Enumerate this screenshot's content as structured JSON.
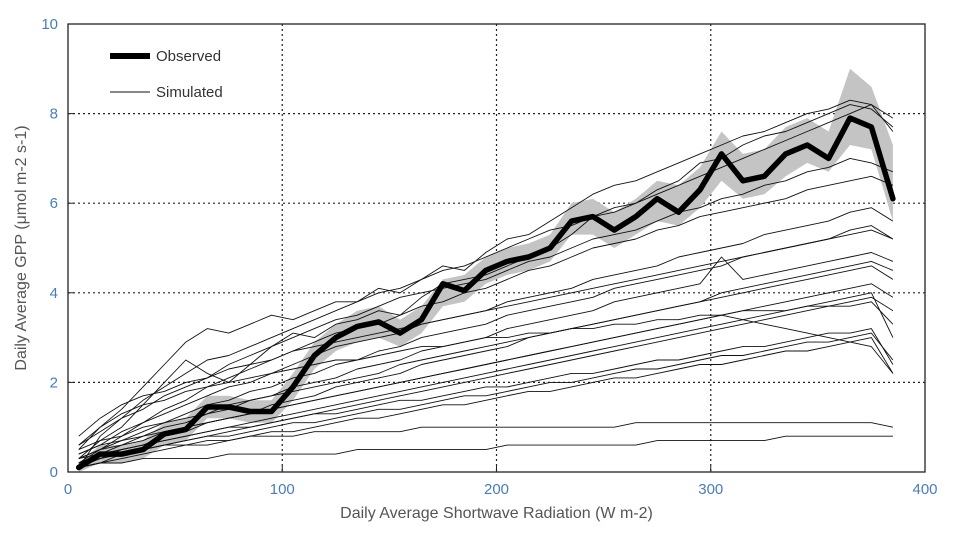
{
  "chart_data": {
    "type": "line",
    "xlabel": "Daily Average Shortwave Radiation (W m-2)",
    "ylabel": "Daily Average GPP (μmol m-2 s-1)",
    "xlim": [
      0,
      400
    ],
    "ylim": [
      0,
      10
    ],
    "xticks": [
      "0",
      "100",
      "200",
      "300",
      "400"
    ],
    "yticks": [
      "0",
      "2",
      "4",
      "6",
      "8",
      "10"
    ],
    "grid": true,
    "legend_position": "top-left",
    "legend": [
      "Observed",
      "Simulated"
    ],
    "colors": {
      "observed": "#000000",
      "simulated": "#111111",
      "band": "#c4c4c4",
      "tick": "#4a7db5"
    },
    "x": [
      5,
      15,
      25,
      35,
      45,
      55,
      65,
      75,
      85,
      95,
      105,
      115,
      125,
      135,
      145,
      155,
      165,
      175,
      185,
      195,
      205,
      215,
      225,
      235,
      245,
      255,
      265,
      275,
      285,
      295,
      305,
      315,
      325,
      335,
      345,
      355,
      365,
      375,
      385
    ],
    "observed_band": {
      "lower": [
        0,
        0.2,
        0.2,
        0.3,
        0.6,
        0.7,
        1.2,
        1.2,
        1.1,
        1.1,
        1.6,
        2.3,
        2.7,
        2.9,
        3.0,
        2.8,
        3.1,
        3.7,
        3.8,
        4.2,
        4.4,
        4.5,
        4.7,
        5.3,
        5.3,
        5.0,
        5.3,
        5.6,
        5.5,
        5.9,
        6.5,
        6.1,
        6.2,
        6.6,
        6.9,
        6.7,
        7.3,
        7.2,
        5.6
      ],
      "upper": [
        0.2,
        0.6,
        0.6,
        0.7,
        1.1,
        1.2,
        1.7,
        1.7,
        1.6,
        1.6,
        2.2,
        2.9,
        3.3,
        3.6,
        3.7,
        3.4,
        3.7,
        4.3,
        4.4,
        4.8,
        5.0,
        5.1,
        5.3,
        6.0,
        6.1,
        5.8,
        6.1,
        6.5,
        6.4,
        6.8,
        7.6,
        7.1,
        7.2,
        7.7,
        7.9,
        7.6,
        9.0,
        8.6,
        7.3
      ]
    },
    "series": [
      {
        "name": "Observed",
        "values": [
          0.1,
          0.4,
          0.4,
          0.5,
          0.85,
          0.95,
          1.45,
          1.45,
          1.35,
          1.35,
          1.9,
          2.6,
          3.0,
          3.25,
          3.35,
          3.1,
          3.4,
          4.2,
          4.05,
          4.5,
          4.7,
          4.8,
          5.0,
          5.6,
          5.7,
          5.4,
          5.7,
          6.1,
          5.8,
          6.3,
          7.1,
          6.5,
          6.6,
          7.1,
          7.3,
          7.0,
          7.9,
          7.7,
          6.1
        ]
      },
      {
        "values": [
          0.1,
          0.8,
          1.2,
          1.6,
          1.9,
          2.2,
          2.5,
          2.6,
          2.8,
          3.0,
          3.2,
          3.4,
          3.6,
          3.8,
          4.0,
          4.1,
          4.3,
          4.5,
          4.6,
          4.8,
          5.0,
          5.2,
          5.4,
          5.5,
          5.7,
          5.9,
          6.0,
          6.2,
          6.4,
          6.6,
          6.8,
          7.0,
          7.2,
          7.4,
          7.6,
          7.8,
          8.0,
          8.2,
          7.6
        ]
      },
      {
        "values": [
          0.5,
          1.0,
          1.4,
          1.9,
          2.4,
          2.9,
          3.2,
          3.1,
          3.3,
          3.5,
          3.4,
          3.6,
          3.8,
          3.8,
          4.1,
          4.0,
          4.3,
          4.6,
          4.5,
          4.9,
          5.2,
          5.3,
          5.6,
          5.9,
          6.2,
          6.4,
          6.5,
          6.7,
          6.9,
          7.1,
          7.3,
          7.5,
          7.6,
          7.8,
          8.0,
          8.1,
          8.3,
          8.2,
          7.9
        ]
      },
      {
        "values": [
          0.3,
          0.7,
          1.0,
          1.5,
          2.0,
          2.5,
          2.2,
          2.0,
          2.4,
          2.8,
          3.1,
          3.0,
          3.3,
          3.4,
          3.6,
          3.5,
          3.9,
          4.2,
          4.3,
          4.4,
          4.6,
          4.8,
          5.0,
          5.3,
          5.7,
          5.8,
          6.0,
          6.3,
          6.5,
          6.9,
          7.0,
          7.3,
          7.5,
          7.6,
          7.8,
          8.0,
          8.2,
          8.1,
          7.7
        ]
      },
      {
        "values": [
          0.6,
          0.9,
          1.2,
          1.4,
          1.7,
          1.9,
          2.1,
          2.4,
          2.6,
          2.8,
          3.0,
          3.2,
          3.4,
          3.5,
          3.7,
          3.9,
          4.0,
          4.1,
          4.2,
          4.3,
          4.5,
          4.7,
          4.8,
          5.0,
          5.2,
          5.3,
          5.4,
          5.6,
          5.8,
          5.9,
          6.1,
          6.2,
          6.4,
          6.5,
          6.7,
          6.8,
          7.0,
          6.9,
          6.7
        ]
      },
      {
        "values": [
          0.2,
          0.5,
          0.8,
          1.1,
          1.4,
          1.6,
          1.9,
          2.1,
          2.3,
          2.5,
          2.7,
          2.9,
          3.1,
          3.2,
          3.3,
          3.5,
          3.7,
          3.8,
          4.0,
          4.1,
          4.3,
          4.5,
          4.6,
          4.8,
          5.0,
          5.1,
          5.2,
          5.4,
          5.5,
          5.7,
          5.8,
          5.9,
          6.0,
          6.1,
          6.3,
          6.4,
          6.5,
          6.6,
          6.4
        ]
      },
      {
        "values": [
          0.4,
          0.6,
          0.9,
          1.1,
          1.3,
          1.5,
          1.7,
          1.9,
          2.0,
          2.2,
          2.4,
          2.6,
          2.8,
          2.9,
          3.0,
          3.1,
          3.3,
          3.4,
          3.5,
          3.6,
          3.8,
          3.9,
          4.0,
          4.1,
          4.3,
          4.4,
          4.5,
          4.6,
          4.8,
          4.9,
          5.0,
          5.1,
          5.3,
          5.4,
          5.5,
          5.6,
          5.8,
          5.9,
          5.6
        ]
      },
      {
        "values": [
          0.3,
          0.5,
          0.7,
          0.9,
          1.1,
          1.3,
          1.5,
          1.6,
          1.8,
          1.9,
          2.1,
          2.2,
          2.4,
          2.5,
          2.7,
          2.8,
          3.0,
          3.1,
          3.2,
          3.3,
          3.5,
          3.6,
          3.7,
          3.8,
          3.9,
          4.1,
          4.2,
          4.3,
          4.4,
          4.5,
          4.6,
          4.8,
          4.9,
          5.0,
          5.1,
          5.2,
          5.4,
          5.5,
          5.2
        ]
      },
      {
        "values": [
          0.2,
          0.4,
          0.6,
          0.8,
          1.0,
          1.1,
          1.3,
          1.4,
          1.6,
          1.7,
          1.9,
          2.0,
          2.1,
          2.3,
          2.4,
          2.5,
          2.7,
          2.8,
          2.9,
          3.0,
          3.2,
          3.3,
          3.4,
          3.5,
          3.6,
          3.8,
          3.9,
          4.0,
          4.1,
          4.2,
          4.8,
          4.3,
          4.4,
          4.5,
          4.6,
          4.7,
          4.8,
          4.9,
          4.7
        ]
      },
      {
        "values": [
          0.1,
          0.3,
          0.5,
          0.6,
          0.8,
          0.9,
          1.1,
          1.2,
          1.3,
          1.5,
          1.6,
          1.7,
          1.9,
          2.0,
          2.1,
          2.2,
          2.4,
          2.5,
          2.6,
          2.7,
          2.8,
          3.0,
          3.1,
          3.2,
          3.3,
          3.4,
          3.5,
          3.6,
          3.7,
          3.8,
          4.0,
          4.1,
          4.2,
          4.3,
          4.4,
          4.5,
          4.6,
          4.7,
          4.5
        ]
      },
      {
        "values": [
          0.5,
          0.7,
          0.8,
          1.0,
          1.1,
          1.2,
          1.3,
          1.5,
          1.6,
          1.7,
          1.8,
          1.9,
          2.0,
          2.1,
          2.2,
          2.4,
          2.5,
          2.6,
          2.7,
          2.8,
          2.9,
          3.0,
          3.1,
          3.2,
          3.3,
          3.4,
          3.5,
          3.6,
          3.7,
          3.8,
          3.9,
          4.0,
          4.1,
          4.2,
          4.3,
          4.4,
          4.5,
          4.6,
          4.3
        ]
      },
      {
        "values": [
          0.3,
          0.5,
          0.6,
          0.7,
          0.9,
          1.0,
          1.1,
          1.2,
          1.3,
          1.4,
          1.5,
          1.6,
          1.7,
          1.8,
          1.9,
          2.0,
          2.1,
          2.2,
          2.3,
          2.4,
          2.5,
          2.6,
          2.7,
          2.8,
          2.9,
          3.0,
          3.1,
          3.2,
          3.3,
          3.4,
          3.5,
          3.6,
          3.7,
          3.8,
          3.9,
          4.0,
          4.1,
          4.2,
          3.9
        ]
      },
      {
        "values": [
          0.4,
          0.6,
          0.7,
          0.8,
          0.9,
          1.0,
          1.1,
          1.2,
          1.3,
          1.4,
          1.5,
          1.6,
          1.7,
          1.8,
          1.9,
          2.0,
          2.1,
          2.2,
          2.3,
          2.4,
          2.5,
          2.6,
          2.7,
          2.8,
          2.9,
          3.0,
          3.1,
          3.2,
          3.3,
          3.4,
          3.5,
          3.4,
          3.3,
          3.2,
          3.1,
          3.0,
          2.9,
          2.8,
          2.2
        ]
      },
      {
        "values": [
          0.1,
          0.2,
          0.4,
          0.5,
          0.6,
          0.7,
          0.8,
          0.9,
          1.0,
          1.1,
          1.2,
          1.3,
          1.4,
          1.5,
          1.6,
          1.7,
          1.8,
          1.9,
          2.0,
          2.1,
          2.2,
          2.3,
          2.4,
          2.5,
          2.6,
          2.7,
          2.8,
          2.9,
          3.0,
          3.1,
          3.2,
          3.3,
          3.4,
          3.5,
          3.6,
          3.7,
          3.8,
          3.9,
          3.6
        ]
      },
      {
        "values": [
          0.2,
          0.4,
          0.5,
          0.6,
          0.7,
          0.8,
          0.9,
          1.0,
          1.1,
          1.2,
          1.3,
          1.4,
          1.5,
          1.6,
          1.7,
          1.8,
          1.9,
          2.0,
          2.1,
          2.2,
          2.3,
          2.4,
          2.5,
          2.6,
          2.7,
          2.8,
          2.9,
          3.0,
          3.1,
          3.2,
          3.3,
          3.4,
          3.5,
          3.6,
          3.7,
          3.8,
          3.9,
          4.0,
          3.0
        ]
      },
      {
        "values": [
          0.3,
          0.4,
          0.5,
          0.6,
          0.7,
          0.8,
          0.9,
          1.0,
          1.0,
          1.1,
          1.2,
          1.3,
          1.3,
          1.4,
          1.5,
          1.6,
          1.6,
          1.7,
          1.8,
          1.9,
          1.9,
          2.0,
          2.1,
          2.2,
          2.2,
          2.3,
          2.4,
          2.5,
          2.5,
          2.6,
          2.7,
          2.8,
          2.8,
          2.9,
          3.0,
          3.1,
          3.1,
          3.2,
          2.4
        ]
      },
      {
        "values": [
          0.2,
          0.3,
          0.4,
          0.5,
          0.6,
          0.7,
          0.8,
          0.8,
          0.9,
          1.0,
          1.1,
          1.1,
          1.2,
          1.3,
          1.4,
          1.4,
          1.5,
          1.6,
          1.7,
          1.7,
          1.8,
          1.9,
          2.0,
          2.0,
          2.1,
          2.2,
          2.3,
          2.3,
          2.4,
          2.5,
          2.6,
          2.6,
          2.7,
          2.8,
          2.9,
          2.9,
          3.0,
          3.1,
          2.5
        ]
      },
      {
        "values": [
          0.1,
          0.2,
          0.3,
          0.4,
          0.5,
          0.6,
          0.6,
          0.7,
          0.8,
          0.9,
          0.9,
          1.0,
          1.1,
          1.2,
          1.2,
          1.3,
          1.4,
          1.5,
          1.5,
          1.6,
          1.7,
          1.8,
          1.8,
          1.9,
          2.0,
          2.1,
          2.1,
          2.2,
          2.3,
          2.4,
          2.4,
          2.5,
          2.6,
          2.7,
          2.7,
          2.8,
          2.9,
          3.0,
          2.2
        ]
      },
      {
        "values": [
          0.8,
          1.2,
          1.5,
          1.7,
          1.8,
          2.0,
          2.1,
          2.3,
          2.4,
          2.5,
          2.7,
          2.8,
          2.9,
          3.0,
          3.1,
          3.2,
          3.3,
          3.4,
          3.5,
          3.6,
          3.7,
          3.8,
          3.9,
          4.0,
          4.1,
          4.2,
          4.3,
          4.4,
          4.5,
          4.6,
          4.7,
          4.8,
          4.9,
          5.0,
          5.1,
          5.2,
          5.3,
          5.4,
          5.2
        ]
      },
      {
        "values": [
          0.6,
          1.0,
          1.3,
          1.5,
          1.6,
          1.8,
          1.9,
          2.0,
          2.1,
          2.2,
          2.3,
          2.4,
          2.5,
          2.5,
          2.6,
          2.7,
          2.8,
          2.8,
          2.9,
          3.0,
          3.0,
          3.1,
          3.1,
          3.2,
          3.2,
          3.3,
          3.3,
          3.4,
          3.4,
          3.5,
          3.5,
          3.6,
          3.6,
          3.6,
          3.7,
          3.7,
          3.7,
          3.8,
          3.3
        ]
      },
      {
        "values": [
          0.1,
          0.2,
          0.2,
          0.3,
          0.3,
          0.3,
          0.3,
          0.4,
          0.4,
          0.4,
          0.4,
          0.4,
          0.4,
          0.5,
          0.5,
          0.5,
          0.5,
          0.5,
          0.5,
          0.5,
          0.6,
          0.6,
          0.6,
          0.6,
          0.6,
          0.6,
          0.6,
          0.7,
          0.7,
          0.7,
          0.7,
          0.7,
          0.7,
          0.8,
          0.8,
          0.8,
          0.8,
          0.8,
          0.8
        ]
      },
      {
        "values": [
          0.2,
          0.3,
          0.4,
          0.5,
          0.6,
          0.6,
          0.7,
          0.7,
          0.8,
          0.8,
          0.8,
          0.9,
          0.9,
          0.9,
          0.9,
          0.9,
          1.0,
          1.0,
          1.0,
          1.0,
          1.0,
          1.0,
          1.0,
          1.0,
          1.0,
          1.0,
          1.1,
          1.1,
          1.1,
          1.1,
          1.1,
          1.1,
          1.1,
          1.1,
          1.1,
          1.1,
          1.1,
          1.1,
          1.0
        ]
      }
    ]
  }
}
